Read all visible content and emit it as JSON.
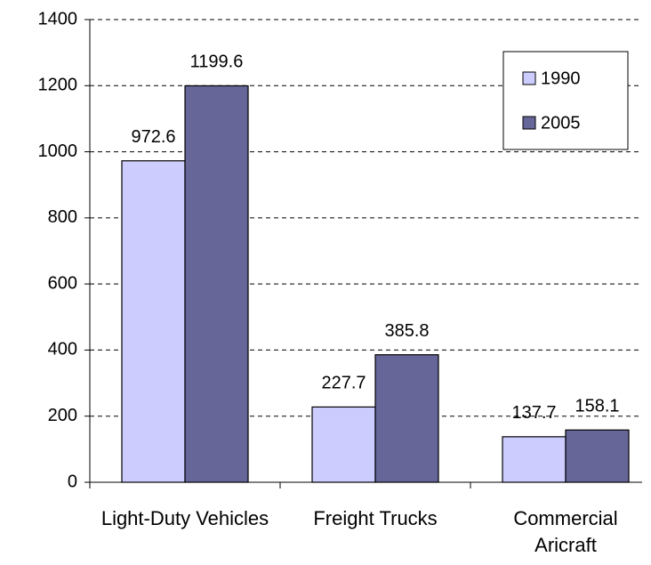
{
  "chart_data": {
    "type": "bar",
    "categories": [
      "Light-Duty Vehicles",
      "Freight Trucks",
      "Commercial Aricraft"
    ],
    "series": [
      {
        "name": "1990",
        "color": "#ccccff",
        "values": [
          972.6,
          227.7,
          137.7
        ]
      },
      {
        "name": "2005",
        "color": "#666699",
        "values": [
          1199.6,
          385.8,
          158.1
        ]
      }
    ],
    "ylim": [
      0,
      1400
    ],
    "yticks": [
      0,
      200,
      400,
      600,
      800,
      1000,
      1200,
      1400
    ],
    "grid": true,
    "legend": "top-right"
  }
}
